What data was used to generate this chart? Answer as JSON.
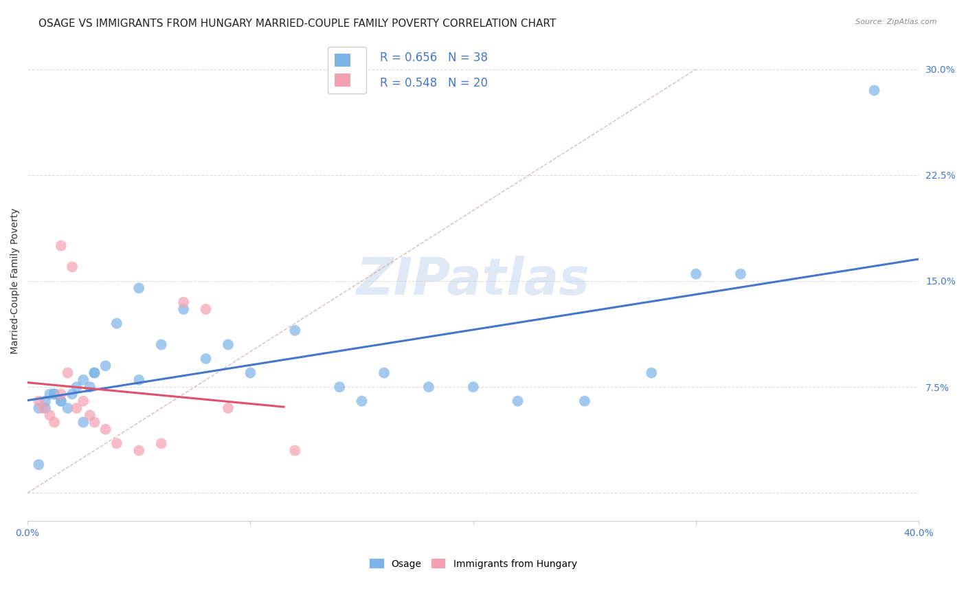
{
  "title": "OSAGE VS IMMIGRANTS FROM HUNGARY MARRIED-COUPLE FAMILY POVERTY CORRELATION CHART",
  "source": "Source: ZipAtlas.com",
  "ylabel": "Married-Couple Family Poverty",
  "xlim": [
    0.0,
    0.4
  ],
  "ylim": [
    -0.02,
    0.32
  ],
  "xticks": [
    0.0,
    0.1,
    0.2,
    0.3,
    0.4
  ],
  "xticklabels": [
    "0.0%",
    "",
    "",
    "",
    "40.0%"
  ],
  "yticks": [
    0.0,
    0.075,
    0.15,
    0.225,
    0.3
  ],
  "yticklabels": [
    "",
    "7.5%",
    "15.0%",
    "22.5%",
    "30.0%"
  ],
  "watermark": "ZIPatlas",
  "color_blue": "#7EB3E8",
  "color_pink": "#F4A0B0",
  "line_blue": "#4477CC",
  "line_pink": "#E05070",
  "line_diag_color": "#C8A0A0",
  "osage_x": [
    0.005,
    0.008,
    0.01,
    0.012,
    0.015,
    0.018,
    0.02,
    0.022,
    0.025,
    0.028,
    0.03,
    0.035,
    0.04,
    0.05,
    0.06,
    0.07,
    0.08,
    0.09,
    0.1,
    0.12,
    0.14,
    0.15,
    0.16,
    0.18,
    0.2,
    0.22,
    0.25,
    0.28,
    0.3,
    0.32,
    0.005,
    0.008,
    0.012,
    0.015,
    0.025,
    0.03,
    0.05,
    0.38
  ],
  "osage_y": [
    0.06,
    0.065,
    0.07,
    0.07,
    0.065,
    0.06,
    0.07,
    0.075,
    0.08,
    0.075,
    0.085,
    0.09,
    0.12,
    0.145,
    0.105,
    0.13,
    0.095,
    0.105,
    0.085,
    0.115,
    0.075,
    0.065,
    0.085,
    0.075,
    0.075,
    0.065,
    0.065,
    0.085,
    0.155,
    0.155,
    0.02,
    0.06,
    0.07,
    0.065,
    0.05,
    0.085,
    0.08,
    0.285
  ],
  "hungary_x": [
    0.005,
    0.007,
    0.01,
    0.012,
    0.015,
    0.018,
    0.022,
    0.025,
    0.028,
    0.03,
    0.035,
    0.04,
    0.05,
    0.06,
    0.07,
    0.08,
    0.09,
    0.12,
    0.015,
    0.02
  ],
  "hungary_y": [
    0.065,
    0.06,
    0.055,
    0.05,
    0.07,
    0.085,
    0.06,
    0.065,
    0.055,
    0.05,
    0.045,
    0.035,
    0.03,
    0.035,
    0.135,
    0.13,
    0.06,
    0.03,
    0.175,
    0.16
  ],
  "grid_color": "#DDDDDD",
  "background_color": "#FFFFFF",
  "title_fontsize": 11,
  "label_fontsize": 10,
  "tick_fontsize": 10,
  "legend1_r": "R = 0.656",
  "legend1_n": "N = 38",
  "legend2_r": "R = 0.548",
  "legend2_n": "N = 20",
  "legend_bottom": [
    "Osage",
    "Immigrants from Hungary"
  ]
}
